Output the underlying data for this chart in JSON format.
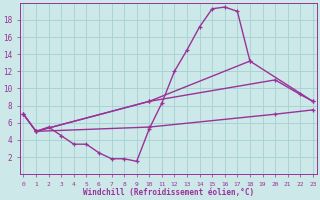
{
  "bg_color": "#cce8e8",
  "line_color": "#993399",
  "grid_color": "#aad4d4",
  "xlabel": "Windchill (Refroidissement éolien,°C)",
  "xlim": [
    -0.3,
    23.3
  ],
  "ylim": [
    0,
    20
  ],
  "yticks": [
    2,
    4,
    6,
    8,
    10,
    12,
    14,
    16,
    18
  ],
  "xticks": [
    0,
    1,
    2,
    3,
    4,
    5,
    6,
    7,
    8,
    9,
    10,
    11,
    12,
    13,
    14,
    15,
    16,
    17,
    18,
    19,
    20,
    21,
    22,
    23
  ],
  "curve1_x": [
    0,
    1,
    2,
    3,
    4,
    5,
    6,
    7,
    8,
    9,
    10,
    11,
    12,
    13,
    14,
    15,
    16,
    17,
    18
  ],
  "curve1_y": [
    7.0,
    5.0,
    5.5,
    4.5,
    3.5,
    3.5,
    2.5,
    1.8,
    1.8,
    1.5,
    5.3,
    8.3,
    12.0,
    14.5,
    17.2,
    19.3,
    19.5,
    19.0,
    13.2
  ],
  "curve2_x": [
    0,
    1,
    10,
    18,
    23
  ],
  "curve2_y": [
    7.0,
    5.0,
    8.5,
    13.2,
    8.5
  ],
  "curve3_x": [
    0,
    1,
    10,
    20,
    22,
    23
  ],
  "curve3_y": [
    7.0,
    5.0,
    8.5,
    11.0,
    9.3,
    8.5
  ],
  "curve4_x": [
    1,
    10,
    20,
    23
  ],
  "curve4_y": [
    5.0,
    5.5,
    7.0,
    7.5
  ]
}
